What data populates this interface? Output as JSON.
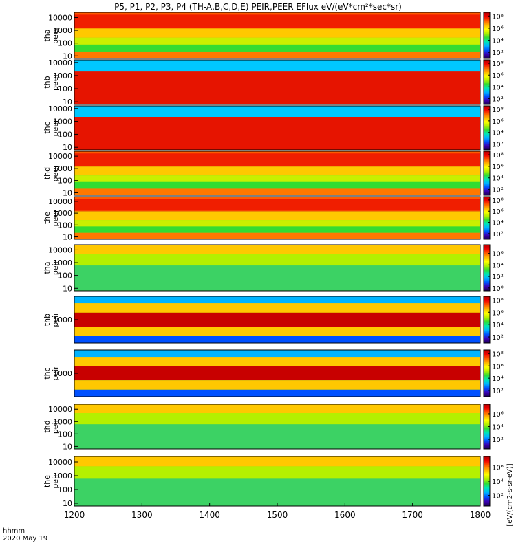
{
  "title": "P5, P1, P2, P3, P4 (TH-A,B,C,D,E) PEIR,PEER EFlux eV/(eV*cm²*sec*sr)",
  "time_axis": {
    "label_line1": "hhmm",
    "label_line2": "2020 May 19",
    "ticks": [
      "1200",
      "1300",
      "1400",
      "1500",
      "1600",
      "1700",
      "1800"
    ],
    "range": [
      1200,
      1800
    ]
  },
  "colorbar_title": "[eV/(cm2-s-sr-eV)]",
  "colormap": [
    "#1a0050",
    "#3c00b4",
    "#0050ff",
    "#00b4ff",
    "#00e6b4",
    "#32dc32",
    "#b4f000",
    "#ffff00",
    "#ffb400",
    "#ff5a00",
    "#f00000",
    "#b40000"
  ],
  "chart_data": [
    {
      "type": "heatmap",
      "probe": "tha",
      "species": "peer",
      "ylabel": [
        "tha",
        "peer"
      ],
      "yticks": [
        "10",
        "100",
        "1000",
        "10000"
      ],
      "yticks_log10": [
        1,
        2,
        3,
        4
      ],
      "ylim_log10": [
        0.8,
        4.4
      ],
      "cbar_ticks": [
        "10⁸",
        "10⁶",
        "10⁴",
        "10²"
      ],
      "cbar_log10": [
        8,
        6,
        4,
        2
      ],
      "cbar_range": [
        1,
        8.6
      ]
    },
    {
      "type": "heatmap",
      "probe": "thb",
      "species": "peer",
      "ylabel": [
        "thb",
        "peer"
      ],
      "yticks": [
        "10",
        "100",
        "1000",
        "10000"
      ],
      "yticks_log10": [
        1,
        2,
        3,
        4
      ],
      "ylim_log10": [
        0.8,
        4.2
      ],
      "cbar_ticks": [
        "10⁸",
        "10⁶",
        "10⁴",
        "10²"
      ],
      "cbar_log10": [
        8,
        6,
        4,
        2
      ],
      "cbar_range": [
        1,
        8.6
      ]
    },
    {
      "type": "heatmap",
      "probe": "thc",
      "species": "peer",
      "ylabel": [
        "thc",
        "peer"
      ],
      "yticks": [
        "10",
        "100",
        "1000",
        "10000"
      ],
      "yticks_log10": [
        1,
        2,
        3,
        4
      ],
      "ylim_log10": [
        0.8,
        4.2
      ],
      "cbar_ticks": [
        "10⁸",
        "10⁶",
        "10⁴",
        "10²"
      ],
      "cbar_log10": [
        8,
        6,
        4,
        2
      ],
      "cbar_range": [
        1,
        8.6
      ]
    },
    {
      "type": "heatmap",
      "probe": "thd",
      "species": "peer",
      "ylabel": [
        "thd",
        "peer"
      ],
      "yticks": [
        "10",
        "100",
        "1000",
        "10000"
      ],
      "yticks_log10": [
        1,
        2,
        3,
        4
      ],
      "ylim_log10": [
        0.8,
        4.4
      ],
      "cbar_ticks": [
        "10⁸",
        "10⁶",
        "10⁴",
        "10²"
      ],
      "cbar_log10": [
        8,
        6,
        4,
        2
      ],
      "cbar_range": [
        1,
        8.6
      ]
    },
    {
      "type": "heatmap",
      "probe": "the",
      "species": "peer",
      "ylabel": [
        "the",
        "peer"
      ],
      "yticks": [
        "10",
        "100",
        "1000",
        "10000"
      ],
      "yticks_log10": [
        1,
        2,
        3,
        4
      ],
      "ylim_log10": [
        0.8,
        4.4
      ],
      "cbar_ticks": [
        "10⁸",
        "10⁶",
        "10⁴",
        "10²"
      ],
      "cbar_log10": [
        8,
        6,
        4,
        2
      ],
      "cbar_range": [
        1,
        8.6
      ]
    },
    {
      "type": "heatmap",
      "probe": "tha",
      "species": "peir",
      "ylabel": [
        "tha",
        "peir"
      ],
      "yticks": [
        "10",
        "100",
        "1000",
        "10000"
      ],
      "yticks_log10": [
        1,
        2,
        3,
        4
      ],
      "ylim_log10": [
        0.8,
        4.4
      ],
      "cbar_ticks": [
        "10⁶",
        "10⁴",
        "10²",
        "10⁰"
      ],
      "cbar_log10": [
        6,
        4,
        2,
        0
      ],
      "cbar_range": [
        -0.5,
        7.5
      ]
    },
    {
      "type": "heatmap",
      "probe": "thb",
      "species": "peir",
      "ylabel": [
        "thb",
        "peir"
      ],
      "yticks": [
        "1000"
      ],
      "yticks_log10": [
        3
      ],
      "ylim_log10": [
        2.2,
        3.8
      ],
      "cbar_ticks": [
        "10⁸",
        "10⁶",
        "10⁴",
        "10²"
      ],
      "cbar_log10": [
        8,
        6,
        4,
        2
      ],
      "cbar_range": [
        1,
        8.6
      ]
    },
    {
      "type": "heatmap",
      "probe": "thc",
      "species": "peir",
      "ylabel": [
        "thc",
        "peir"
      ],
      "yticks": [
        "1000"
      ],
      "yticks_log10": [
        3
      ],
      "ylim_log10": [
        2.2,
        3.8
      ],
      "cbar_ticks": [
        "10⁸",
        "10⁶",
        "10⁴",
        "10²"
      ],
      "cbar_log10": [
        8,
        6,
        4,
        2
      ],
      "cbar_range": [
        1,
        8.6
      ]
    },
    {
      "type": "heatmap",
      "probe": "thd",
      "species": "peir",
      "ylabel": [
        "thd",
        "peir"
      ],
      "yticks": [
        "10",
        "100",
        "1000",
        "10000"
      ],
      "yticks_log10": [
        1,
        2,
        3,
        4
      ],
      "ylim_log10": [
        0.8,
        4.4
      ],
      "cbar_ticks": [
        "10⁶",
        "10⁴",
        "10²"
      ],
      "cbar_log10": [
        6,
        4,
        2
      ],
      "cbar_range": [
        0.5,
        7.5
      ]
    },
    {
      "type": "heatmap",
      "probe": "the",
      "species": "peir",
      "ylabel": [
        "the",
        "peir"
      ],
      "yticks": [
        "10",
        "100",
        "1000",
        "10000"
      ],
      "yticks_log10": [
        1,
        2,
        3,
        4
      ],
      "ylim_log10": [
        0.8,
        4.4
      ],
      "cbar_ticks": [
        "10⁶",
        "10⁴",
        "10²"
      ],
      "cbar_log10": [
        6,
        4,
        2
      ],
      "cbar_range": [
        0.5,
        7.5
      ]
    }
  ]
}
